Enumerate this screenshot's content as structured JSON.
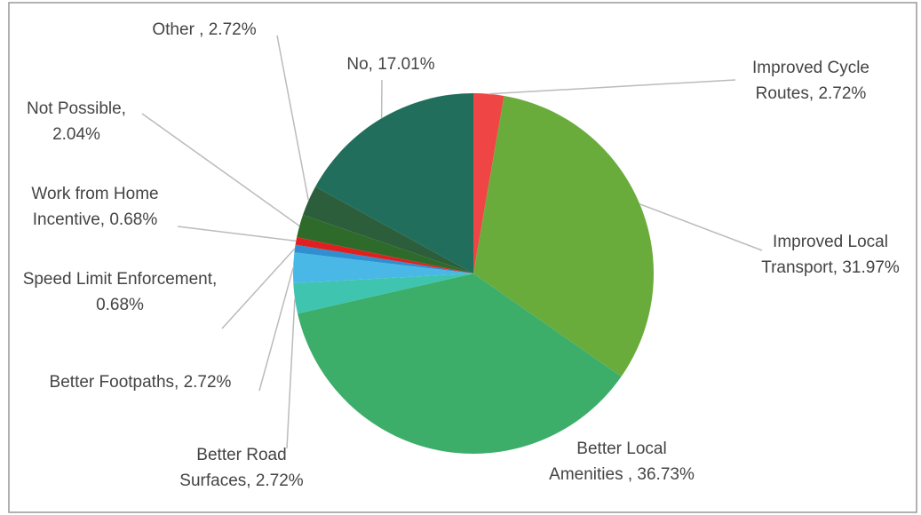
{
  "chart_data": {
    "type": "pie",
    "categories": [
      "Improved Cycle Routes,",
      "Improved Local Transport,",
      "Better Local Amenities ,",
      "Better Road Surfaces,",
      "Better Footpaths,",
      "Speed Limit Enforcement,",
      "Work from Home Incentive,",
      "Not Possible,",
      "Other ,",
      "No,"
    ],
    "values": [
      2.72,
      31.97,
      36.73,
      2.72,
      2.72,
      0.68,
      0.68,
      2.04,
      2.72,
      17.01
    ],
    "value_labels": [
      "2.72%",
      "31.97%",
      "36.73%",
      "2.72%",
      "2.72%",
      "0.68%",
      "0.68%",
      "2.04%",
      "2.72%",
      "17.01%"
    ],
    "colors": [
      "#f04545",
      "#6aac3c",
      "#3cae6a",
      "#3fc4b0",
      "#4ab8e6",
      "#2f8fd0",
      "#e02020",
      "#2e6b2a",
      "#2c5e3c",
      "#216e5c"
    ]
  }
}
